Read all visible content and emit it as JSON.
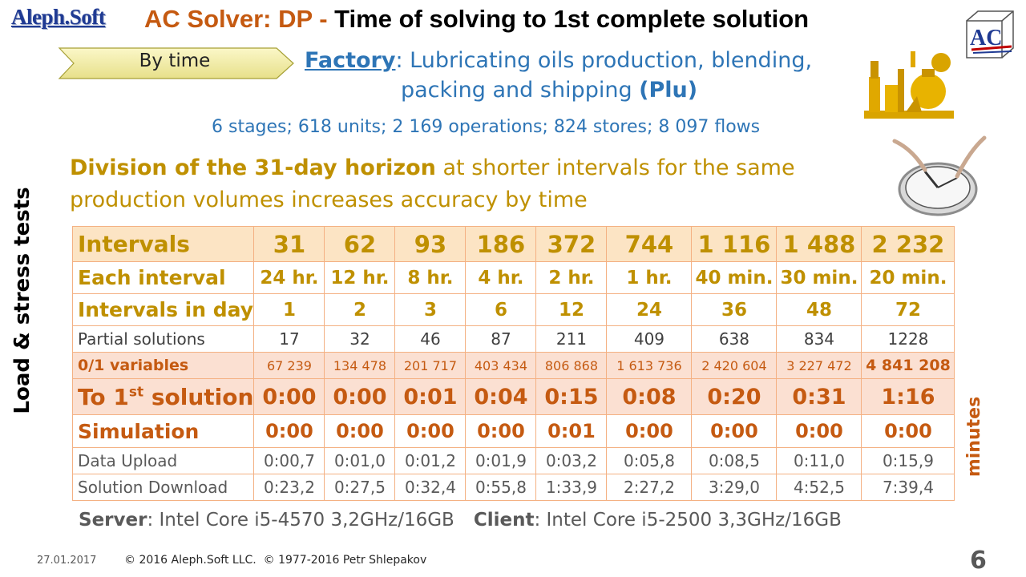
{
  "header": {
    "logo": "Aleph.Soft",
    "title_accent": "AC Solver: DP",
    "title_dash": " - ",
    "title_rest": "Time of solving to 1st complete solution",
    "ac_logo_text": "AC"
  },
  "badge": {
    "label": "By time"
  },
  "factory": {
    "link": "Factory",
    "line1_rest": ": Lubricating oils production, blending,",
    "line2_text": "packing and shipping ",
    "line2_bold": "(Plu)",
    "stats": "6 stages; 618 units; 2 169 operations; 824 stores; 8 097 flows"
  },
  "division": {
    "bold": "Division of the 31-day horizon",
    "line1_rest": " at shorter intervals for the same",
    "line2": "production volumes increases accuracy by time"
  },
  "side": {
    "left": "Load & stress tests",
    "right": "minutes"
  },
  "table": {
    "rows": [
      {
        "label": "Intervals",
        "values": [
          "31",
          "62",
          "93",
          "186",
          "372",
          "744",
          "1 116",
          "1 488",
          "2 232"
        ]
      },
      {
        "label": "Each interval",
        "values": [
          "24 hr.",
          "12 hr.",
          "8 hr.",
          "4 hr.",
          "2 hr.",
          "1 hr.",
          "40 min.",
          "30 min.",
          "20 min."
        ]
      },
      {
        "label": "Intervals in day",
        "values": [
          "1",
          "2",
          "3",
          "6",
          "12",
          "24",
          "36",
          "48",
          "72"
        ]
      },
      {
        "label": "Partial solutions",
        "values": [
          "17",
          "32",
          "46",
          "87",
          "211",
          "409",
          "638",
          "834",
          "1228"
        ]
      },
      {
        "label": "0/1 variables",
        "values": [
          "67 239",
          "134 478",
          "201 717",
          "403 434",
          "806 868",
          "1 613 736",
          "2 420 604",
          "3 227 472",
          "4 841 208"
        ]
      },
      {
        "label_pre": "To 1",
        "label_sup": "st",
        "label_post": " solution",
        "values": [
          "0:00",
          "0:00",
          "0:01",
          "0:04",
          "0:15",
          "0:08",
          "0:20",
          "0:31",
          "1:16"
        ]
      },
      {
        "label": "Simulation",
        "values": [
          "0:00",
          "0:00",
          "0:00",
          "0:00",
          "0:01",
          "0:00",
          "0:00",
          "0:00",
          "0:00"
        ]
      },
      {
        "label": "Data Upload",
        "values": [
          "0:00,7",
          "0:01,0",
          "0:01,2",
          "0:01,9",
          "0:03,2",
          "0:05,8",
          "0:08,5",
          "0:11,0",
          "0:15,9"
        ]
      },
      {
        "label": "Solution Download",
        "values": [
          "0:23,2",
          "0:27,5",
          "0:32,4",
          "0:55,8",
          "1:33,9",
          "2:27,2",
          "3:29,0",
          "4:52,5",
          "7:39,4"
        ]
      }
    ]
  },
  "footer": {
    "server_label": "Server",
    "server_value": ": Intel Core i5-4570 3,2GHz/16GB",
    "client_label": "Client",
    "client_value": ": Intel Core i5-2500 3,3GHz/16GB",
    "date": "27.01.2017",
    "copyright": "© 2016 Aleph.Soft LLC.  © 1977-2016 Petr Shlepakov",
    "page_number": "6"
  },
  "colors": {
    "gold": "#bf9000",
    "orange": "#c55a11",
    "blue": "#2e75b6",
    "table_border": "#f4b183"
  }
}
